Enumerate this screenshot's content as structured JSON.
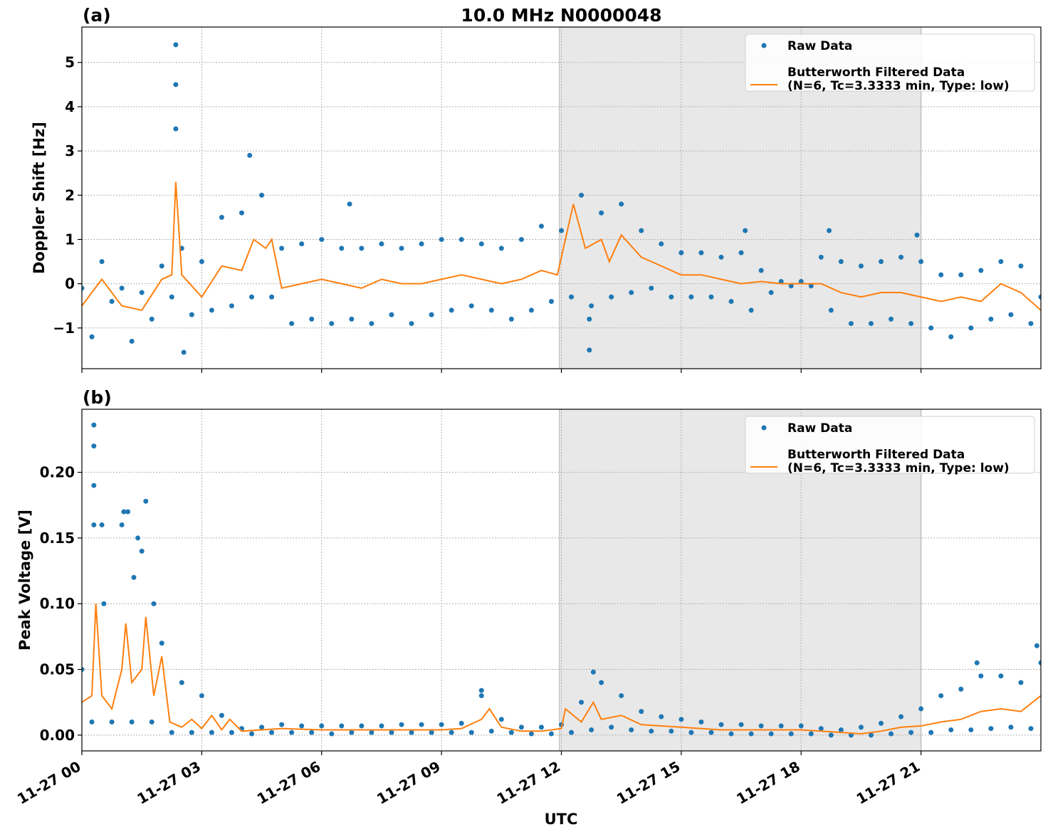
{
  "chart_data": [
    {
      "type": "line",
      "title": "10.0 MHz N0000048",
      "panel_label": "(a)",
      "ylabel": "Doppler Shift [Hz]",
      "xlim": [
        0,
        24
      ],
      "xticks": [
        0,
        3,
        6,
        9,
        12,
        15,
        18,
        21
      ],
      "ylim": [
        -1.92,
        5.8
      ],
      "yticks": [
        {
          "value": -1,
          "label": "−1"
        },
        0,
        1,
        2,
        3,
        4,
        5
      ],
      "grid": true,
      "shaded_x": [
        11.95,
        21
      ],
      "shade_color": "#e8e8e8",
      "legend": "upper right",
      "series": [
        {
          "name": "Raw Data",
          "color": "#1f77b4",
          "style": "points",
          "x": [
            0,
            0.25,
            0.5,
            0.75,
            1,
            1.25,
            1.5,
            1.75,
            2,
            2.25,
            2.5,
            2.75,
            3,
            3.25,
            3.5,
            3.75,
            4,
            4.25,
            4.5,
            4.75,
            5,
            5.25,
            5.5,
            5.75,
            6,
            6.25,
            6.5,
            6.75,
            7,
            7.25,
            7.5,
            7.75,
            8,
            8.25,
            8.5,
            8.75,
            9,
            9.25,
            9.5,
            9.75,
            10,
            10.25,
            10.5,
            10.75,
            11,
            11.25,
            11.5,
            11.75,
            12,
            12.25,
            12.5,
            12.75,
            13,
            13.25,
            13.5,
            13.75,
            14,
            14.25,
            14.5,
            14.75,
            15,
            15.25,
            15.5,
            15.75,
            16,
            16.25,
            16.5,
            16.75,
            17,
            17.25,
            17.5,
            17.75,
            18,
            18.25,
            18.5,
            18.75,
            19,
            19.25,
            19.5,
            19.75,
            20,
            20.25,
            20.5,
            20.75,
            21,
            21.25,
            21.5,
            21.75,
            22,
            22.25,
            22.5,
            22.75,
            23,
            23.25,
            23.5,
            23.75,
            24,
            2.35,
            2.35,
            2.35,
            2.55,
            4.2,
            6.7,
            12.7,
            12.7,
            16.6,
            20.9,
            18.7
          ],
          "values": [
            -0.1,
            -1.2,
            0.5,
            -0.4,
            -0.1,
            -1.3,
            -0.2,
            -0.8,
            0.4,
            -0.3,
            0.8,
            -0.7,
            0.5,
            -0.6,
            1.5,
            -0.5,
            1.6,
            -0.3,
            2.0,
            -0.3,
            0.8,
            -0.9,
            0.9,
            -0.8,
            1.0,
            -0.9,
            0.8,
            -0.8,
            0.8,
            -0.9,
            0.9,
            -0.7,
            0.8,
            -0.9,
            0.9,
            -0.7,
            1.0,
            -0.6,
            1.0,
            -0.5,
            0.9,
            -0.6,
            0.8,
            -0.8,
            1.0,
            -0.6,
            1.3,
            -0.4,
            1.2,
            -0.3,
            2.0,
            -0.5,
            1.6,
            -0.3,
            1.8,
            -0.2,
            1.2,
            -0.1,
            0.9,
            -0.3,
            0.7,
            -0.3,
            0.7,
            -0.3,
            0.6,
            -0.4,
            0.7,
            -0.6,
            0.3,
            -0.2,
            0.05,
            -0.05,
            0.05,
            -0.05,
            0.6,
            -0.6,
            0.5,
            -0.9,
            0.4,
            -0.9,
            0.5,
            -0.8,
            0.6,
            -0.9,
            0.5,
            -1.0,
            0.2,
            -1.2,
            0.2,
            -1.0,
            0.3,
            -0.8,
            0.5,
            -0.7,
            0.4,
            -0.9,
            -0.3,
            5.4,
            4.5,
            3.5,
            -1.55,
            2.9,
            1.8,
            -1.5,
            -0.8,
            1.2,
            1.1,
            1.2
          ]
        },
        {
          "name": [
            "Butterworth Filtered Data",
            "(N=6, Tc=3.3333 min, Type: low)"
          ],
          "color": "#ff7f0e",
          "style": "line",
          "x": [
            0,
            0.5,
            1,
            1.5,
            2,
            2.25,
            2.35,
            2.5,
            3,
            3.5,
            4,
            4.3,
            4.6,
            4.75,
            5,
            5.5,
            6,
            6.5,
            7,
            7.5,
            8,
            8.5,
            9,
            9.5,
            10,
            10.5,
            11,
            11.5,
            11.9,
            12.1,
            12.3,
            12.6,
            13,
            13.2,
            13.5,
            14,
            14.5,
            15,
            15.5,
            16,
            16.5,
            17,
            17.5,
            18,
            18.5,
            19,
            19.5,
            20,
            20.5,
            21,
            21.5,
            22,
            22.5,
            23,
            23.5,
            24
          ],
          "values": [
            -0.5,
            0.1,
            -0.5,
            -0.6,
            0.1,
            0.2,
            2.3,
            0.2,
            -0.3,
            0.4,
            0.3,
            1.0,
            0.8,
            1.0,
            -0.1,
            0,
            0.1,
            0,
            -0.1,
            0.1,
            0,
            0,
            0.1,
            0.2,
            0.1,
            0,
            0.1,
            0.3,
            0.2,
            1.0,
            1.8,
            0.8,
            1.0,
            0.5,
            1.1,
            0.6,
            0.4,
            0.2,
            0.2,
            0.1,
            0,
            0.05,
            0,
            0,
            0,
            -0.2,
            -0.3,
            -0.2,
            -0.2,
            -0.3,
            -0.4,
            -0.3,
            -0.4,
            0,
            -0.2,
            -0.6
          ]
        }
      ]
    },
    {
      "type": "line",
      "panel_label": "(b)",
      "ylabel": "Peak Voltage [V]",
      "xlabel": "UTC",
      "xlim": [
        0,
        24
      ],
      "xticks": [
        {
          "value": 0,
          "label": "11-27 00"
        },
        {
          "value": 3,
          "label": "11-27 03"
        },
        {
          "value": 6,
          "label": "11-27 06"
        },
        {
          "value": 9,
          "label": "11-27 09"
        },
        {
          "value": 12,
          "label": "11-27 12"
        },
        {
          "value": 15,
          "label": "11-27 15"
        },
        {
          "value": 18,
          "label": "11-27 18"
        },
        {
          "value": 21,
          "label": "11-27 21"
        }
      ],
      "ylim": [
        -0.012,
        0.248
      ],
      "yticks": [
        {
          "value": 0,
          "label": "0.00"
        },
        {
          "value": 0.05,
          "label": "0.05"
        },
        {
          "value": 0.1,
          "label": "0.10"
        },
        {
          "value": 0.15,
          "label": "0.15"
        },
        {
          "value": 0.2,
          "label": "0.20"
        }
      ],
      "grid": true,
      "shaded_x": [
        11.95,
        21
      ],
      "shade_color": "#e8e8e8",
      "legend": "upper right",
      "series": [
        {
          "name": "Raw Data",
          "color": "#1f77b4",
          "style": "points",
          "x": [
            0,
            0.25,
            0.5,
            0.75,
            1,
            1.25,
            1.5,
            1.75,
            2,
            2.25,
            2.5,
            2.75,
            3,
            3.25,
            3.5,
            3.75,
            4,
            4.25,
            4.5,
            4.75,
            5,
            5.25,
            5.5,
            5.75,
            6,
            6.25,
            6.5,
            6.75,
            7,
            7.25,
            7.5,
            7.75,
            8,
            8.25,
            8.5,
            8.75,
            9,
            9.25,
            9.5,
            9.75,
            10,
            10.25,
            10.5,
            10.75,
            11,
            11.25,
            11.5,
            11.75,
            12,
            12.25,
            12.5,
            12.75,
            13,
            13.25,
            13.5,
            13.75,
            14,
            14.25,
            14.5,
            14.75,
            15,
            15.25,
            15.5,
            15.75,
            16,
            16.25,
            16.5,
            16.75,
            17,
            17.25,
            17.5,
            17.75,
            18,
            18.25,
            18.5,
            18.75,
            19,
            19.25,
            19.5,
            19.75,
            20,
            20.25,
            20.5,
            20.75,
            21,
            21.25,
            21.5,
            21.75,
            22,
            22.25,
            22.5,
            22.75,
            23,
            23.25,
            23.5,
            23.75,
            24,
            0.3,
            0.3,
            0.3,
            0.3,
            1.05,
            1.15,
            1.6,
            1.4,
            0.55,
            1.3,
            1.8,
            10,
            12.8,
            23.9,
            22.4
          ],
          "values": [
            0.05,
            0.01,
            0.16,
            0.01,
            0.16,
            0.01,
            0.14,
            0.01,
            0.07,
            0.002,
            0.04,
            0.002,
            0.03,
            0.002,
            0.015,
            0.002,
            0.005,
            0.001,
            0.006,
            0.002,
            0.008,
            0.002,
            0.007,
            0.002,
            0.007,
            0.001,
            0.007,
            0.002,
            0.007,
            0.002,
            0.007,
            0.002,
            0.008,
            0.002,
            0.008,
            0.002,
            0.008,
            0.002,
            0.009,
            0.002,
            0.03,
            0.003,
            0.012,
            0.002,
            0.006,
            0.001,
            0.006,
            0.001,
            0.008,
            0.002,
            0.025,
            0.004,
            0.04,
            0.006,
            0.03,
            0.004,
            0.018,
            0.003,
            0.014,
            0.003,
            0.012,
            0.002,
            0.01,
            0.002,
            0.008,
            0.001,
            0.008,
            0.001,
            0.007,
            0.001,
            0.007,
            0.001,
            0.007,
            0.001,
            0.005,
            0.0,
            0.004,
            0.0,
            0.006,
            0.0,
            0.009,
            0.001,
            0.014,
            0.002,
            0.02,
            0.002,
            0.03,
            0.004,
            0.035,
            0.004,
            0.045,
            0.005,
            0.045,
            0.006,
            0.04,
            0.005,
            0.055,
            0.236,
            0.22,
            0.19,
            0.16,
            0.17,
            0.17,
            0.178,
            0.15,
            0.1,
            0.12,
            0.1,
            0.034,
            0.048,
            0.068,
            0.055
          ]
        },
        {
          "name": [
            "Butterworth Filtered Data",
            "(N=6, Tc=3.3333 min, Type: low)"
          ],
          "color": "#ff7f0e",
          "style": "line",
          "x": [
            0,
            0.25,
            0.35,
            0.5,
            0.75,
            1,
            1.1,
            1.25,
            1.5,
            1.6,
            1.8,
            2,
            2.2,
            2.5,
            2.75,
            3,
            3.25,
            3.5,
            3.7,
            4,
            5,
            6,
            7,
            8,
            9,
            9.5,
            10,
            10.2,
            10.5,
            11,
            11.5,
            12,
            12.1,
            12.5,
            12.8,
            13,
            13.5,
            14,
            15,
            16,
            17,
            18,
            19,
            19.5,
            20,
            20.5,
            21,
            21.5,
            22,
            22.5,
            23,
            23.5,
            24
          ],
          "values": [
            0.025,
            0.03,
            0.1,
            0.03,
            0.02,
            0.05,
            0.085,
            0.04,
            0.05,
            0.09,
            0.03,
            0.06,
            0.01,
            0.006,
            0.012,
            0.005,
            0.015,
            0.004,
            0.012,
            0.003,
            0.005,
            0.004,
            0.004,
            0.004,
            0.004,
            0.005,
            0.012,
            0.02,
            0.006,
            0.003,
            0.003,
            0.005,
            0.02,
            0.01,
            0.025,
            0.012,
            0.015,
            0.008,
            0.006,
            0.004,
            0.004,
            0.004,
            0.002,
            0.001,
            0.003,
            0.006,
            0.007,
            0.01,
            0.012,
            0.018,
            0.02,
            0.018,
            0.03
          ]
        }
      ]
    }
  ]
}
